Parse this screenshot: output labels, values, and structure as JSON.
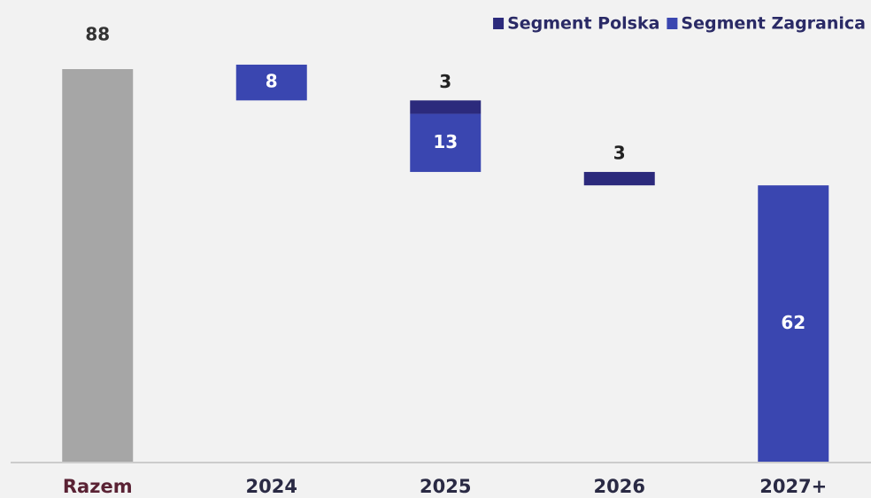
{
  "chart_data": {
    "type": "waterfall",
    "categories": [
      "Razem",
      "2024",
      "2025",
      "2026",
      "2027+"
    ],
    "total": 88,
    "total_color": "#a6a6a6",
    "series": [
      {
        "name": "Segment Polska",
        "color": "#2c2a7c",
        "values": [
          null,
          null,
          3,
          3,
          null
        ]
      },
      {
        "name": "Segment Zagranica",
        "color": "#3a46b0",
        "values": [
          null,
          8,
          13,
          null,
          62
        ]
      }
    ],
    "ylim": [
      0,
      88
    ],
    "legend": "top-right"
  }
}
